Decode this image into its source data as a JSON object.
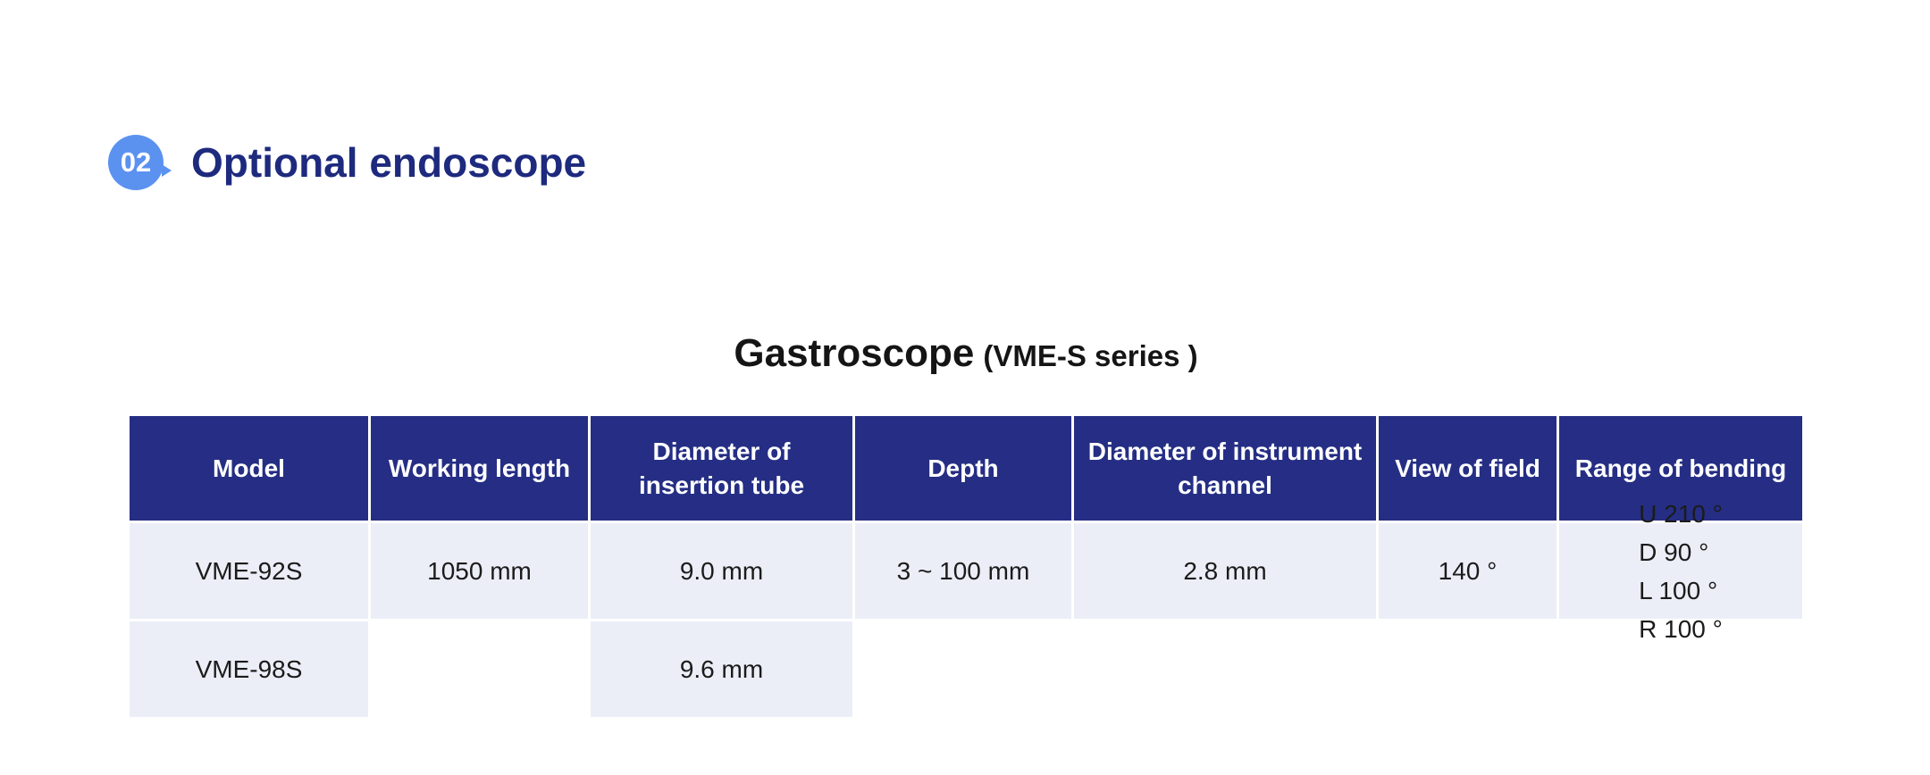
{
  "section": {
    "badge_number": "02",
    "heading": "Optional endoscope"
  },
  "table_title": {
    "main": "Gastroscope",
    "sub": "(VME-S series )"
  },
  "table": {
    "headers": [
      "Model",
      "Working length",
      "Diameter of insertion tube",
      "Depth",
      "Diameter of instrument channel",
      "View of field",
      "Range of bending"
    ],
    "rows": [
      {
        "model": "VME-92S",
        "insertion_tube_diameter": "9.0 mm"
      },
      {
        "model": "VME-98S",
        "insertion_tube_diameter": "9.6 mm"
      }
    ],
    "merged": {
      "working_length": "1050 mm",
      "depth": "3 ~ 100 mm",
      "instrument_channel_diameter": "2.8 mm",
      "view_of_field": "140 °",
      "range_of_bending": [
        "U 210 °",
        "D 90 °",
        "L 100 °",
        "R 100 °"
      ]
    }
  },
  "colors": {
    "badge_blue": "#5b92f0",
    "heading_navy": "#1e2a7e",
    "table_header_bg": "#252e84",
    "table_body_bg": "#eceef7",
    "page_bg": "#ffffff"
  }
}
